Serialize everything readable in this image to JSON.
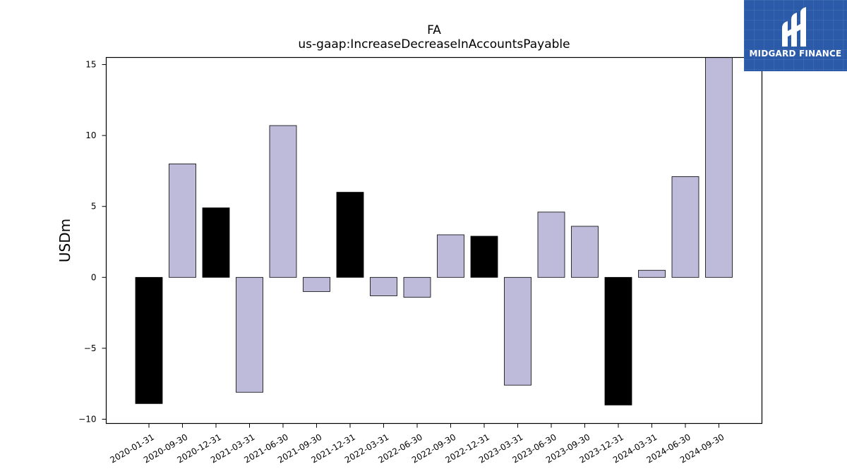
{
  "chart_data": {
    "type": "bar",
    "title": "FA",
    "subtitle": "us-gaap:IncreaseDecreaseInAccountsPayable",
    "xlabel": "",
    "ylabel": "USDm",
    "ylim": [
      -10.3,
      15.5
    ],
    "yticks": [
      -10,
      -5,
      0,
      5,
      10,
      15
    ],
    "ytick_labels": [
      "−10",
      "−5",
      "0",
      "5",
      "10",
      "15"
    ],
    "grid": false,
    "categories": [
      "2020-01-31",
      "2020-09-30",
      "2020-12-31",
      "2021-03-31",
      "2021-06-30",
      "2021-09-30",
      "2021-12-31",
      "2022-03-31",
      "2022-06-30",
      "2022-09-30",
      "2022-12-31",
      "2023-03-31",
      "2023-06-30",
      "2023-09-30",
      "2023-12-31",
      "2024-03-31",
      "2024-06-30",
      "2024-09-30"
    ],
    "values": [
      -8.9,
      8.0,
      4.9,
      -8.1,
      10.7,
      -1.0,
      6.0,
      -1.3,
      -1.4,
      3.0,
      2.9,
      -7.6,
      4.6,
      3.6,
      -9.0,
      0.5,
      7.1,
      15.5
    ],
    "highlight": [
      true,
      false,
      false,
      false,
      false,
      false,
      false,
      false,
      false,
      false,
      false,
      false,
      false,
      false,
      true,
      false,
      false,
      false
    ],
    "highlight_extra": [
      false,
      false,
      true,
      false,
      false,
      false,
      true,
      false,
      false,
      false,
      true,
      false,
      false,
      false,
      false,
      false,
      false,
      false
    ],
    "colors": {
      "bar": "#bebbda",
      "highlight": "#000000",
      "edge": "#000000"
    }
  },
  "logo": {
    "text": "MIDGARD FINANCE",
    "background": "#2b5aa9"
  }
}
